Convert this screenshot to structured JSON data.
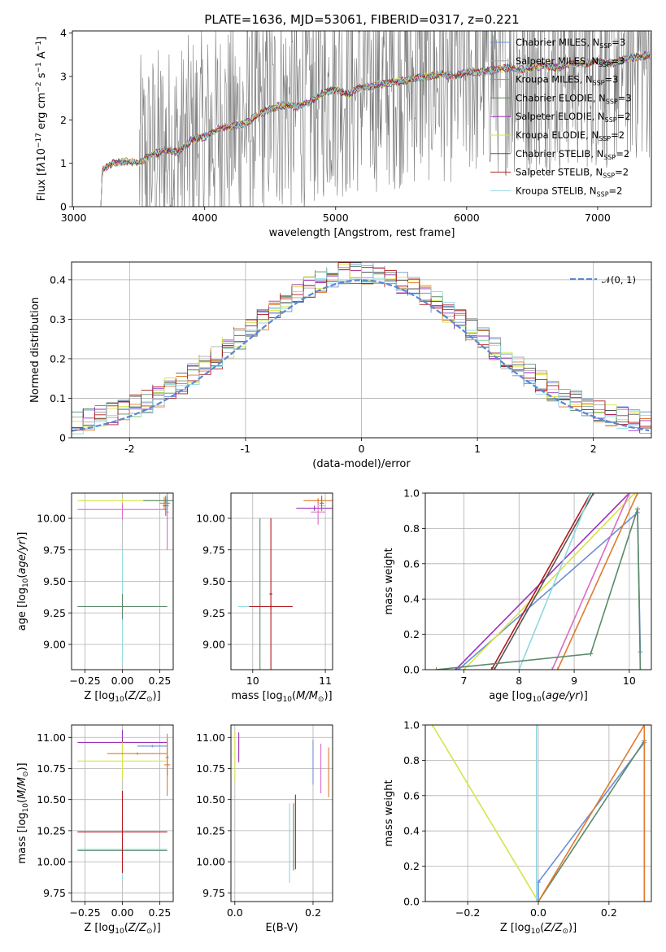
{
  "chart_data": [
    {
      "id": "spectrum",
      "type": "line",
      "title": "PLATE=1636, MJD=53061, FIBERID=0317, z=0.221",
      "xlabel": "wavelength [Angstrom, rest frame]",
      "ylabel_html": "Flux [f<tspan font-style='italic'>λ</tspan>10<tspan dy='-5' font-size='9'>−17</tspan><tspan dy='5'> erg cm</tspan><tspan dy='-5' font-size='9'>−2</tspan><tspan dy='5'> s</tspan><tspan dy='-5' font-size='9'>−1</tspan><tspan dy='5'> A</tspan><tspan dy='-5' font-size='9'>−1</tspan><tspan dy='5'>]</tspan>",
      "xlim": [
        2990,
        7410
      ],
      "ylim": [
        0,
        4.05
      ],
      "xticks": [
        3000,
        4000,
        5000,
        6000,
        7000
      ],
      "yticks": [
        0,
        1,
        2,
        3,
        4
      ],
      "data": {
        "x": [
          3200,
          3220,
          3300,
          3400,
          3500,
          3600,
          3700,
          3800,
          3900,
          4000,
          4100,
          4200,
          4300,
          4400,
          4500,
          4600,
          4700,
          4800,
          4900,
          5000,
          5100,
          5200,
          5300,
          5400,
          5500,
          5600,
          5700,
          5800,
          5900,
          6000,
          6100,
          6200,
          6300,
          6400,
          6500,
          6600,
          6700,
          6800,
          6900,
          7000,
          7100,
          7200,
          7300,
          7400
        ],
        "y": [
          0.0,
          0.85,
          1.0,
          1.05,
          1.0,
          1.2,
          1.3,
          1.25,
          1.55,
          1.6,
          1.8,
          1.85,
          1.9,
          2.1,
          2.25,
          2.35,
          2.3,
          2.4,
          2.6,
          2.7,
          2.6,
          2.75,
          2.8,
          2.85,
          2.9,
          2.95,
          3.0,
          3.05,
          3.0,
          3.1,
          3.1,
          3.15,
          3.2,
          3.15,
          3.2,
          3.25,
          3.2,
          3.3,
          3.3,
          3.35,
          3.3,
          3.4,
          3.45,
          3.5
        ],
        "noise_start": 3500
      },
      "series": [
        {
          "name_html": "Chabrier MILES, N<tspan dy='3' font-size='8'>SSP</tspan><tspan dy='-3'>=3</tspan>",
          "color": "#6b8fd6"
        },
        {
          "name_html": "Salpeter MILES, N<tspan dy='3' font-size='8'>SSP</tspan><tspan dy='-3'>=3</tspan>",
          "color": "#a8a8a8"
        },
        {
          "name_html": "Kroupa MILES, N<tspan dy='3' font-size='8'>SSP</tspan><tspan dy='-3'>=3</tspan>",
          "color": "#e07b2e"
        },
        {
          "name_html": "Chabrier ELODIE, N<tspan dy='3' font-size='8'>SSP</tspan><tspan dy='-3'>=3</tspan>",
          "color": "#5a8a6a"
        },
        {
          "name_html": "Salpeter ELODIE, N<tspan dy='3' font-size='8'>SSP</tspan><tspan dy='-3'>=2</tspan>",
          "color": "#9b30b8"
        },
        {
          "name_html": "Kroupa ELODIE, N<tspan dy='3' font-size='8'>SSP</tspan><tspan dy='-3'>=2</tspan>",
          "color": "#d7e34a"
        },
        {
          "name_html": "Chabrier STELIB, N<tspan dy='3' font-size='8'>SSP</tspan><tspan dy='-3'>=2</tspan>",
          "color": "#555555"
        },
        {
          "name_html": "Salpeter STELIB, N<tspan dy='3' font-size='8'>SSP</tspan><tspan dy='-3'>=2</tspan>",
          "color": "#b0191e"
        },
        {
          "name_html": "Kroupa STELIB, N<tspan dy='3' font-size='8'>SSP</tspan><tspan dy='-3'>=2</tspan>",
          "color": "#8ed8e0"
        }
      ],
      "legend": "top-right"
    },
    {
      "id": "residuals",
      "type": "histogram",
      "xlabel": "(data-model)/error",
      "ylabel": "Normed distribution",
      "xlim": [
        -2.5,
        2.5
      ],
      "ylim": [
        0,
        0.445
      ],
      "xticks": [
        -2,
        -1,
        0,
        1,
        2
      ],
      "yticks": [
        0.0,
        0.1,
        0.2,
        0.3,
        0.4
      ],
      "grid": true,
      "legend": "top-right",
      "reference_label": "𝒩(0, 1)",
      "reference_color": "#5b86d4",
      "bin_width": 0.1,
      "series_colors": [
        "#6b8fd6",
        "#a8a8a8",
        "#e07b2e",
        "#5a8a6a",
        "#9b30b8",
        "#d7e34a",
        "#555555",
        "#b0191e",
        "#8ed8e0"
      ]
    },
    {
      "id": "age-vs-Z",
      "type": "errorbar",
      "xlabel_html": "Z [log<tspan dy='3' font-size='9'>10</tspan><tspan dy='-3'>(</tspan><tspan font-style='italic'>Z/Z</tspan><tspan dy='3' font-size='9'>⊙</tspan><tspan dy='-3'>)]</tspan>",
      "ylabel_html": "age  [log<tspan dy='3' font-size='9'>10</tspan><tspan dy='-3'>(</tspan><tspan font-style='italic'>age/yr</tspan>)]",
      "xlim": [
        -0.34,
        0.34
      ],
      "ylim": [
        8.8,
        10.2
      ],
      "xticks": [
        -0.25,
        0.0,
        0.25
      ],
      "xticklabels": [
        "−0.25",
        "0.00",
        "0.25"
      ],
      "yticks": [
        9.0,
        9.25,
        9.5,
        9.75,
        10.0
      ],
      "yticklabels": [
        "9.00",
        "9.25",
        "9.50",
        "9.75",
        "10.00"
      ],
      "grid": true,
      "points": [
        {
          "x": 0.0,
          "y": 9.3,
          "xerr": 0.3,
          "yerr": 0.45,
          "color": "#8ed8e0"
        },
        {
          "x": 0.0,
          "y": 9.3,
          "xerr": 0.3,
          "yerr": 0.1,
          "color": "#5a8a6a"
        },
        {
          "x": 0.0,
          "y": 10.07,
          "xerr": 0.3,
          "yerr": 0.08,
          "color": "#d86cc4"
        },
        {
          "x": 0.0,
          "y": 10.14,
          "xerr": 0.3,
          "yerr": 0.02,
          "color": "#d7e34a"
        },
        {
          "x": 0.28,
          "y": 10.12,
          "xerr": 0.03,
          "yerr": 0.05,
          "color": "#e07b2e"
        },
        {
          "x": 0.29,
          "y": 10.1,
          "xerr": 0.02,
          "yerr": 0.08,
          "color": "#5a8a6a"
        },
        {
          "x": 0.3,
          "y": 10.05,
          "xerr": 0.01,
          "yerr": 0.3,
          "color": "#d86cc4"
        },
        {
          "x": 0.29,
          "y": 10.14,
          "xerr": 0.15,
          "yerr": 0.02,
          "color": "#5a8a6a"
        },
        {
          "x": 0.3,
          "y": 10.12,
          "xerr": 0.02,
          "yerr": 0.05,
          "color": "#6b8fd6"
        }
      ]
    },
    {
      "id": "age-vs-mass",
      "type": "errorbar",
      "xlabel_html": "mass [log<tspan dy='3' font-size='9'>10</tspan><tspan dy='-3'>(</tspan><tspan font-style='italic'>M/M</tspan><tspan dy='3' font-size='9'>⊙</tspan><tspan dy='-3'>)]</tspan>",
      "xlim": [
        9.7,
        11.1
      ],
      "ylim": [
        8.8,
        10.2
      ],
      "xticks": [
        10,
        11
      ],
      "xticklabels": [
        "10",
        "11"
      ],
      "yticks": [
        9.0,
        9.25,
        9.5,
        9.75,
        10.0
      ],
      "yticklabels": [
        "9.00",
        "9.25",
        "9.50",
        "9.75",
        "10.00"
      ],
      "grid": true,
      "points": [
        {
          "x": 10.1,
          "y": 9.3,
          "xerr": 0.3,
          "yerr": 0.02,
          "color": "#8ed8e0"
        },
        {
          "x": 10.1,
          "y": 9.3,
          "xerr": 0.05,
          "yerr": 0.7,
          "color": "#5a8a6a"
        },
        {
          "x": 10.25,
          "y": 9.3,
          "xerr": 0.3,
          "yerr": 0.02,
          "color": "#b0191e"
        },
        {
          "x": 10.25,
          "y": 9.4,
          "xerr": 0.02,
          "yerr": 0.6,
          "color": "#b0191e"
        },
        {
          "x": 10.85,
          "y": 10.08,
          "xerr": 0.25,
          "yerr": 0.02,
          "color": "#9b30b8"
        },
        {
          "x": 10.9,
          "y": 10.05,
          "xerr": 0.1,
          "yerr": 0.1,
          "color": "#d86cc4"
        },
        {
          "x": 10.95,
          "y": 10.1,
          "xerr": 0.05,
          "yerr": 0.05,
          "color": "#d7e34a"
        },
        {
          "x": 10.9,
          "y": 10.14,
          "xerr": 0.2,
          "yerr": 0.02,
          "color": "#e07b2e"
        },
        {
          "x": 10.95,
          "y": 10.12,
          "xerr": 0.03,
          "yerr": 0.06,
          "color": "#5a8a6a"
        }
      ]
    },
    {
      "id": "mass-weight-vs-age",
      "type": "line",
      "xlabel_html": "age  [log<tspan dy='3' font-size='9'>10</tspan><tspan dy='-3'>(</tspan><tspan font-style='italic'>age/yr</tspan>)]",
      "ylabel": "mass weight",
      "xlim": [
        6.3,
        10.4
      ],
      "ylim": [
        0,
        1
      ],
      "xticks": [
        7,
        8,
        9,
        10
      ],
      "yticks": [
        0.0,
        0.2,
        0.4,
        0.6,
        0.8,
        1.0
      ],
      "yticklabels": [
        "0.0",
        "0.2",
        "0.4",
        "0.6",
        "0.8",
        "1.0"
      ],
      "grid": true,
      "series": [
        {
          "color": "#6b8fd6",
          "x": [
            6.9,
            10.15,
            10.2
          ],
          "y": [
            0.0,
            0.89,
            0.1
          ]
        },
        {
          "color": "#9b30b8",
          "x": [
            6.85,
            10.0
          ],
          "y": [
            0.0,
            1.0
          ]
        },
        {
          "color": "#d7e34a",
          "x": [
            7.0,
            10.1
          ],
          "y": [
            0.0,
            1.0
          ]
        },
        {
          "color": "#b0191e",
          "x": [
            7.5,
            9.3
          ],
          "y": [
            0.0,
            1.0
          ]
        },
        {
          "color": "#555555",
          "x": [
            7.55,
            9.35
          ],
          "y": [
            0.0,
            1.0
          ]
        },
        {
          "color": "#8ed8e0",
          "x": [
            8.0,
            9.3
          ],
          "y": [
            0.0,
            1.0
          ]
        },
        {
          "color": "#d86cc4",
          "x": [
            8.6,
            10.0
          ],
          "y": [
            0.0,
            1.0
          ]
        },
        {
          "color": "#e07b2e",
          "x": [
            8.7,
            10.15
          ],
          "y": [
            0.0,
            1.0
          ]
        },
        {
          "color": "#5a8a6a",
          "x": [
            6.5,
            9.3,
            10.15,
            10.2
          ],
          "y": [
            0.0,
            0.09,
            0.91,
            0.0
          ]
        }
      ]
    },
    {
      "id": "mass-vs-Z",
      "type": "errorbar",
      "xlabel_html": "Z [log<tspan dy='3' font-size='9'>10</tspan><tspan dy='-3'>(</tspan><tspan font-style='italic'>Z/Z</tspan><tspan dy='3' font-size='9'>⊙</tspan><tspan dy='-3'>)]</tspan>",
      "ylabel_html": "mass [log<tspan dy='3' font-size='9'>10</tspan><tspan dy='-3'>(</tspan><tspan font-style='italic'>M/M</tspan><tspan dy='3' font-size='9'>⊙</tspan><tspan dy='-3'>)]</tspan>",
      "xlim": [
        -0.34,
        0.34
      ],
      "ylim": [
        9.68,
        11.1
      ],
      "xticks": [
        -0.25,
        0.0,
        0.25
      ],
      "xticklabels": [
        "−0.25",
        "0.00",
        "0.25"
      ],
      "yticks": [
        9.75,
        10.0,
        10.25,
        10.5,
        10.75,
        11.0
      ],
      "yticklabels": [
        "9.75",
        "10.00",
        "10.25",
        "10.50",
        "10.75",
        "11.00"
      ],
      "grid": true,
      "points": [
        {
          "x": 0.0,
          "y": 10.1,
          "xerr": 0.3,
          "yerr": 0.25,
          "color": "#8ed8e0"
        },
        {
          "x": 0.0,
          "y": 10.09,
          "xerr": 0.3,
          "yerr": 0.01,
          "color": "#5a8a6a"
        },
        {
          "x": 0.0,
          "y": 10.24,
          "xerr": 0.3,
          "yerr": 0.33,
          "color": "#b0191e"
        },
        {
          "x": 0.0,
          "y": 10.96,
          "xerr": 0.3,
          "yerr": 0.1,
          "color": "#9b30b8"
        },
        {
          "x": 0.0,
          "y": 10.81,
          "xerr": 0.3,
          "yerr": 0.15,
          "color": "#d7e34a"
        },
        {
          "x": 0.2,
          "y": 10.93,
          "xerr": 0.1,
          "yerr": 0.01,
          "color": "#6b8fd6"
        },
        {
          "x": 0.3,
          "y": 10.84,
          "xerr": 0.01,
          "yerr": 0.15,
          "color": "#5a8a6a"
        },
        {
          "x": 0.3,
          "y": 10.78,
          "xerr": 0.02,
          "yerr": 0.25,
          "color": "#e07b2e"
        },
        {
          "x": 0.1,
          "y": 10.87,
          "xerr": 0.2,
          "yerr": 0.01,
          "color": "#e07b2e"
        }
      ]
    },
    {
      "id": "mass-vs-EBV",
      "type": "errorbar",
      "xlabel": "E(B-V)",
      "xlim": [
        -0.01,
        0.25
      ],
      "ylim": [
        9.68,
        11.1
      ],
      "xticks": [
        0.0,
        0.2
      ],
      "xticklabels": [
        "0.0",
        "0.2"
      ],
      "yticks": [
        9.75,
        10.0,
        10.25,
        10.5,
        10.75,
        11.0
      ],
      "yticklabels": [
        "9.75",
        "10.00",
        "10.25",
        "10.50",
        "10.75",
        "11.00"
      ],
      "grid": true,
      "points": [
        {
          "x": 0.0,
          "y": 10.85,
          "xerr": 0.0,
          "yerr": 0.2,
          "color": "#d7e34a"
        },
        {
          "x": 0.01,
          "y": 10.92,
          "xerr": 0.0,
          "yerr": 0.12,
          "color": "#9b30b8"
        },
        {
          "x": 0.14,
          "y": 10.15,
          "xerr": 0.0,
          "yerr": 0.32,
          "color": "#8ed8e0"
        },
        {
          "x": 0.15,
          "y": 10.2,
          "xerr": 0.0,
          "yerr": 0.27,
          "color": "#5a8a6a"
        },
        {
          "x": 0.155,
          "y": 10.24,
          "xerr": 0.0,
          "yerr": 0.3,
          "color": "#b0191e"
        },
        {
          "x": 0.2,
          "y": 10.8,
          "xerr": 0.0,
          "yerr": 0.18,
          "color": "#6b8fd6"
        },
        {
          "x": 0.22,
          "y": 10.75,
          "xerr": 0.0,
          "yerr": 0.2,
          "color": "#d86cc4"
        },
        {
          "x": 0.24,
          "y": 10.72,
          "xerr": 0.0,
          "yerr": 0.2,
          "color": "#e07b2e"
        }
      ]
    },
    {
      "id": "mass-weight-vs-Z",
      "type": "line",
      "xlabel_html": "Z [log<tspan dy='3' font-size='9'>10</tspan><tspan dy='-3'>(</tspan><tspan font-style='italic'>Z/Z</tspan><tspan dy='3' font-size='9'>⊙</tspan><tspan dy='-3'>)]</tspan>",
      "ylabel": "mass weight",
      "xlim": [
        -0.32,
        0.32
      ],
      "ylim": [
        0,
        1
      ],
      "xticks": [
        -0.2,
        0.0,
        0.2
      ],
      "xticklabels": [
        "−0.2",
        "0.0",
        "0.2"
      ],
      "yticks": [
        0.0,
        0.2,
        0.4,
        0.6,
        0.8,
        1.0
      ],
      "yticklabels": [
        "0.0",
        "0.2",
        "0.4",
        "0.6",
        "0.8",
        "1.0"
      ],
      "grid": true,
      "series": [
        {
          "color": "#d7e34a",
          "x": [
            -0.3,
            0.0
          ],
          "y": [
            1.0,
            0.0
          ]
        },
        {
          "color": "#6b8fd6",
          "x": [
            0.0,
            0.0,
            0.3
          ],
          "y": [
            0.0,
            0.11,
            0.9
          ]
        },
        {
          "color": "#5a8a6a",
          "x": [
            0.0,
            0.3,
            0.3
          ],
          "y": [
            0.0,
            0.91,
            0.0
          ]
        },
        {
          "color": "#e07b2e",
          "x": [
            0.0,
            0.3,
            0.3
          ],
          "y": [
            0.0,
            1.0,
            0.0
          ]
        },
        {
          "color": "#8ed8e0",
          "x": [
            -0.005,
            -0.005
          ],
          "y": [
            0.0,
            1.0
          ]
        }
      ]
    }
  ]
}
